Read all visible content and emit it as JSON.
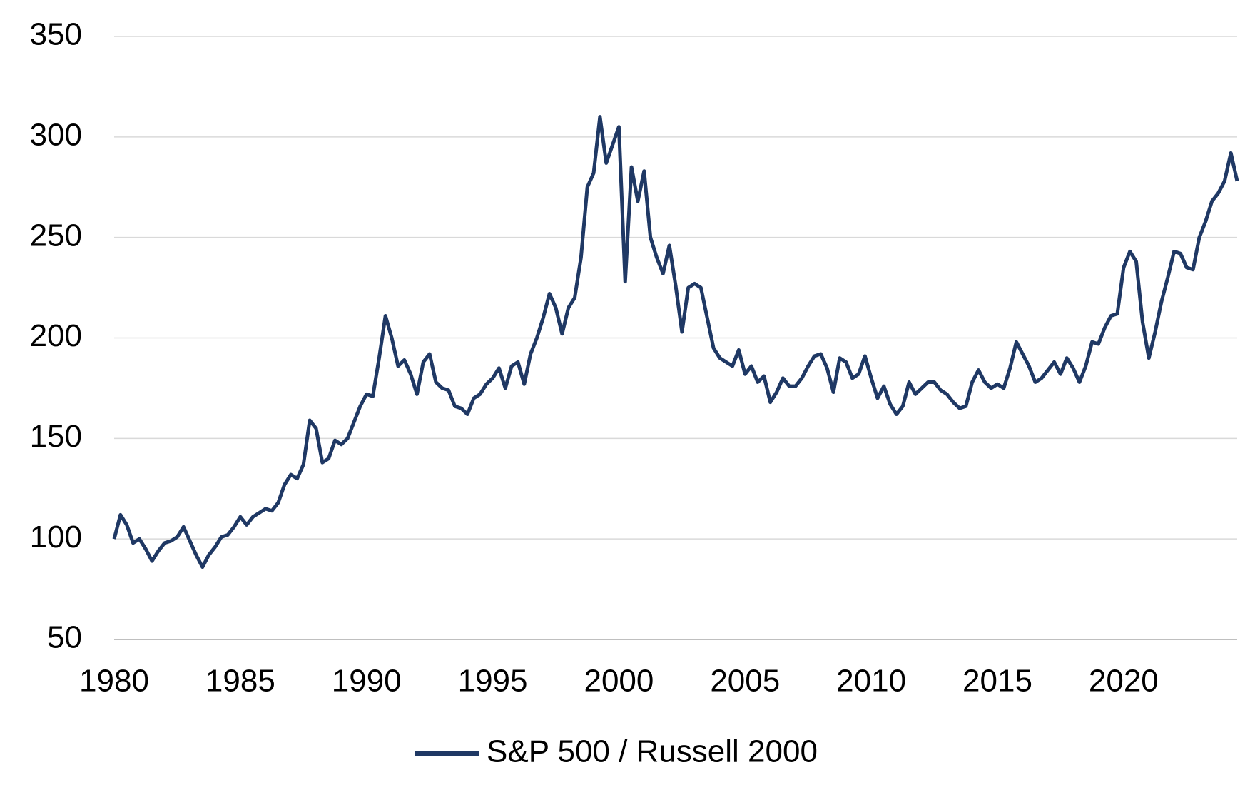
{
  "chart_data": {
    "type": "line",
    "x": [
      1980,
      1980.25,
      1980.5,
      1980.75,
      1981,
      1981.25,
      1981.5,
      1981.75,
      1982,
      1982.25,
      1982.5,
      1982.75,
      1983,
      1983.25,
      1983.5,
      1983.75,
      1984,
      1984.25,
      1984.5,
      1984.75,
      1985,
      1985.25,
      1985.5,
      1985.75,
      1986,
      1986.25,
      1986.5,
      1986.75,
      1987,
      1987.25,
      1987.5,
      1987.75,
      1988,
      1988.25,
      1988.5,
      1988.75,
      1989,
      1989.25,
      1989.5,
      1989.75,
      1990,
      1990.25,
      1990.5,
      1990.75,
      1991,
      1991.25,
      1991.5,
      1991.75,
      1992,
      1992.25,
      1992.5,
      1992.75,
      1993,
      1993.25,
      1993.5,
      1993.75,
      1994,
      1994.25,
      1994.5,
      1994.75,
      1995,
      1995.25,
      1995.5,
      1995.75,
      1996,
      1996.25,
      1996.5,
      1996.75,
      1997,
      1997.25,
      1997.5,
      1997.75,
      1998,
      1998.25,
      1998.5,
      1998.75,
      1999,
      1999.25,
      1999.5,
      1999.75,
      2000,
      2000.25,
      2000.5,
      2000.75,
      2001,
      2001.25,
      2001.5,
      2001.75,
      2002,
      2002.25,
      2002.5,
      2002.75,
      2003,
      2003.25,
      2003.5,
      2003.75,
      2004,
      2004.25,
      2004.5,
      2004.75,
      2005,
      2005.25,
      2005.5,
      2005.75,
      2006,
      2006.25,
      2006.5,
      2006.75,
      2007,
      2007.25,
      2007.5,
      2007.75,
      2008,
      2008.25,
      2008.5,
      2008.75,
      2009,
      2009.25,
      2009.5,
      2009.75,
      2010,
      2010.25,
      2010.5,
      2010.75,
      2011,
      2011.25,
      2011.5,
      2011.75,
      2012,
      2012.25,
      2012.5,
      2012.75,
      2013,
      2013.25,
      2013.5,
      2013.75,
      2014,
      2014.25,
      2014.5,
      2014.75,
      2015,
      2015.25,
      2015.5,
      2015.75,
      2016,
      2016.25,
      2016.5,
      2016.75,
      2017,
      2017.25,
      2017.5,
      2017.75,
      2018,
      2018.25,
      2018.5,
      2018.75,
      2019,
      2019.25,
      2019.5,
      2019.75,
      2020,
      2020.25,
      2020.5,
      2020.75,
      2021,
      2021.25,
      2021.5,
      2021.75,
      2022,
      2022.25,
      2022.5,
      2022.75,
      2023,
      2023.25,
      2023.5,
      2023.75,
      2024,
      2024.25,
      2024.5
    ],
    "series": [
      {
        "name": "S&P 500 / Russell 2000",
        "color": "#1f3864",
        "values": [
          100,
          112,
          107,
          98,
          100,
          95,
          89,
          94,
          98,
          99,
          101,
          106,
          99,
          92,
          86,
          92,
          96,
          101,
          102,
          106,
          111,
          107,
          111,
          113,
          115,
          114,
          118,
          127,
          132,
          130,
          137,
          159,
          155,
          138,
          140,
          149,
          147,
          150,
          158,
          166,
          172,
          171,
          190,
          211,
          200,
          186,
          189,
          182,
          172,
          188,
          192,
          178,
          175,
          174,
          166,
          165,
          162,
          170,
          172,
          177,
          180,
          185,
          175,
          186,
          188,
          177,
          192,
          200,
          210,
          222,
          215,
          202,
          215,
          220,
          240,
          275,
          282,
          310,
          287,
          296,
          305,
          228,
          285,
          268,
          283,
          250,
          240,
          232,
          246,
          226,
          203,
          225,
          227,
          225,
          210,
          195,
          190,
          188,
          186,
          194,
          182,
          186,
          178,
          181,
          168,
          173,
          180,
          176,
          176,
          180,
          186,
          191,
          192,
          185,
          173,
          190,
          188,
          180,
          182,
          191,
          180,
          170,
          176,
          167,
          162,
          166,
          178,
          172,
          175,
          178,
          178,
          174,
          172,
          168,
          165,
          166,
          178,
          184,
          178,
          175,
          177,
          175,
          185,
          198,
          192,
          186,
          178,
          180,
          184,
          188,
          182,
          190,
          185,
          178,
          186,
          198,
          197,
          205,
          211,
          212,
          235,
          243,
          238,
          208,
          190,
          203,
          218,
          230,
          243,
          242,
          235,
          234,
          250,
          258,
          268,
          272,
          278,
          292,
          278
        ]
      }
    ],
    "xlim": [
      1980,
      2024.5
    ],
    "xticks": [
      1980,
      1985,
      1990,
      1995,
      2000,
      2005,
      2010,
      2015,
      2020
    ],
    "ylim": [
      50,
      350
    ],
    "yticks": [
      50,
      100,
      150,
      200,
      250,
      300,
      350
    ],
    "grid": true
  }
}
